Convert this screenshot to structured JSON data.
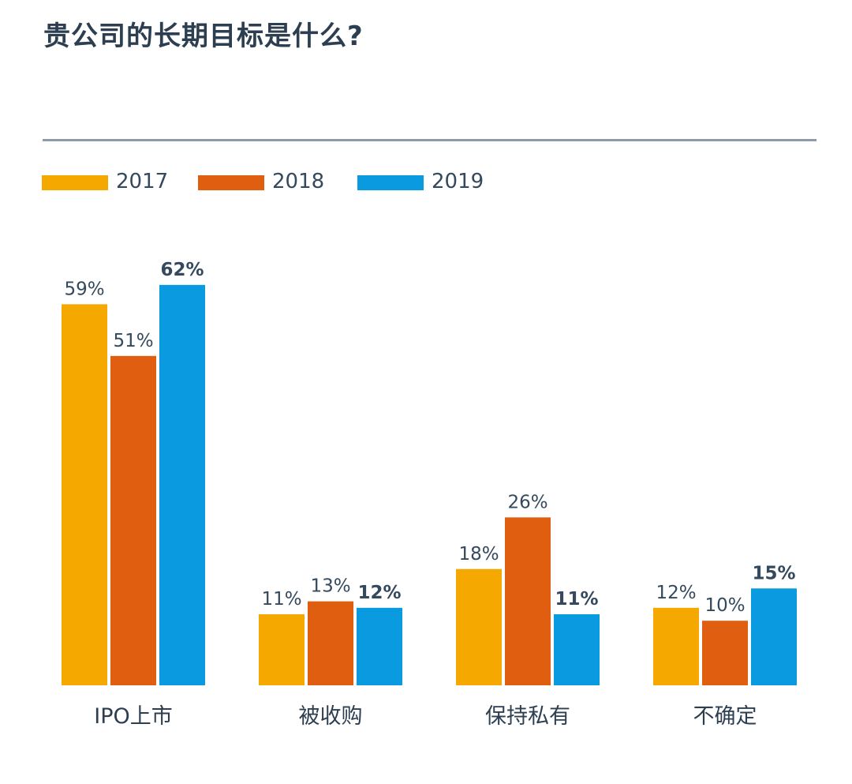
{
  "title": "贵公司的长期目标是什么?",
  "colors": {
    "2017": "#f5a800",
    "2018": "#e05e0f",
    "2019": "#0a9ae0",
    "text": "#34495e",
    "rule": "#8e9aa8"
  },
  "chart_data": {
    "type": "bar",
    "title": "贵公司的长期目标是什么?",
    "categories": [
      "IPO上市",
      "被收购",
      "保持私有",
      "不确定"
    ],
    "series": [
      {
        "name": "2017",
        "values": [
          59,
          11,
          18,
          12
        ],
        "labels": [
          "59%",
          "11%",
          "18%",
          "12%"
        ]
      },
      {
        "name": "2018",
        "values": [
          51,
          13,
          26,
          10
        ],
        "labels": [
          "51%",
          "13%",
          "26%",
          "10%"
        ]
      },
      {
        "name": "2019",
        "values": [
          62,
          12,
          11,
          15
        ],
        "labels": [
          "62%",
          "12%",
          "11%",
          "15%"
        ]
      }
    ],
    "highlight_series": "2019",
    "unit": "%",
    "legend": "top-left",
    "ylim": [
      0,
      62
    ],
    "grid": false,
    "xlabel": "",
    "ylabel": ""
  }
}
